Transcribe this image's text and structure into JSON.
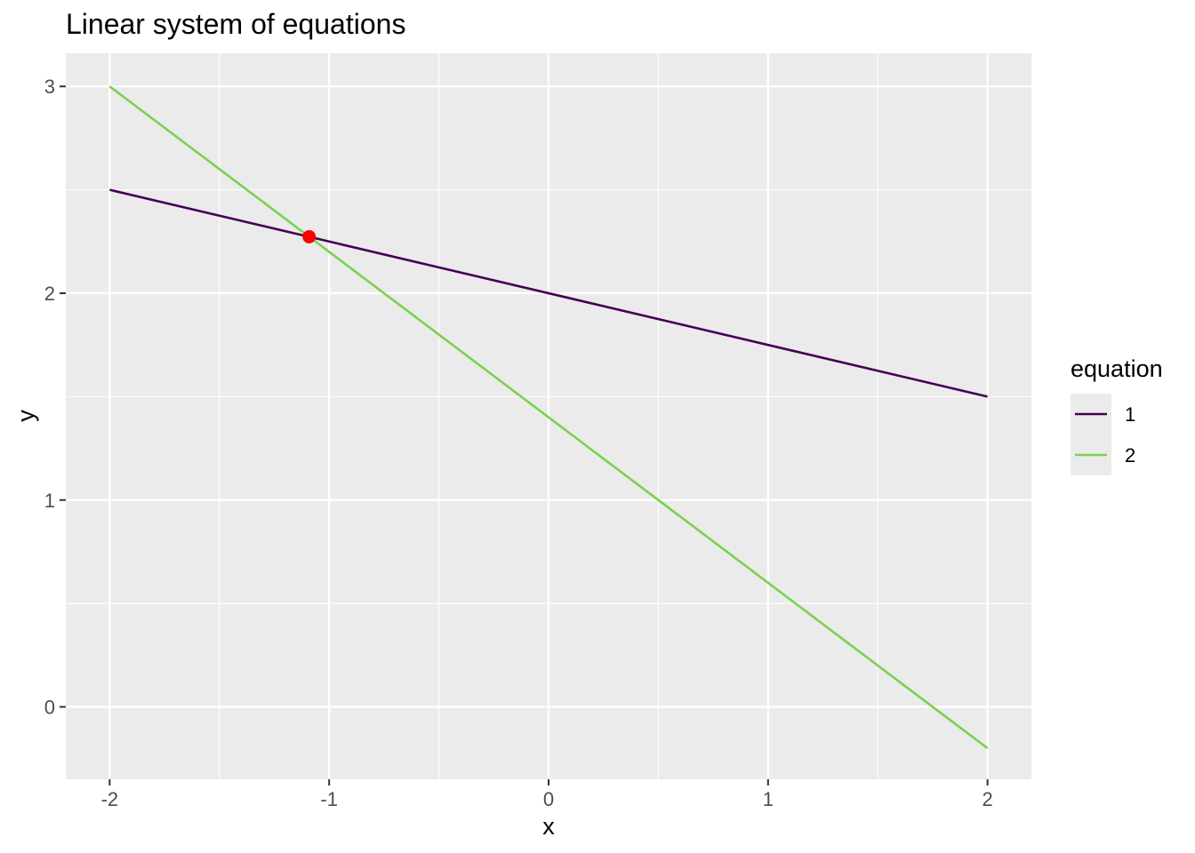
{
  "chart_data": {
    "type": "line",
    "title": "Linear system of equations",
    "xlabel": "x",
    "ylabel": "y",
    "xlim": [
      -2.2,
      2.2
    ],
    "ylim": [
      -0.35,
      3.16
    ],
    "x_ticks": [
      -2,
      -1,
      0,
      1,
      2
    ],
    "x_tick_labels": [
      "-2",
      "-1",
      "0",
      "1",
      "2"
    ],
    "y_ticks": [
      0,
      1,
      2,
      3
    ],
    "y_tick_labels": [
      "0",
      "1",
      "2",
      "3"
    ],
    "grid": true,
    "legend": {
      "title": "equation",
      "position": "right"
    },
    "series": [
      {
        "name": "1",
        "color": "#440154",
        "x": [
          -2,
          2
        ],
        "y": [
          2.5,
          1.5
        ]
      },
      {
        "name": "2",
        "color": "#7AD151",
        "x": [
          -2,
          2
        ],
        "y": [
          3.0,
          -0.2
        ]
      }
    ],
    "points": [
      {
        "x": -1.091,
        "y": 2.273,
        "color": "#FF0000"
      }
    ]
  }
}
